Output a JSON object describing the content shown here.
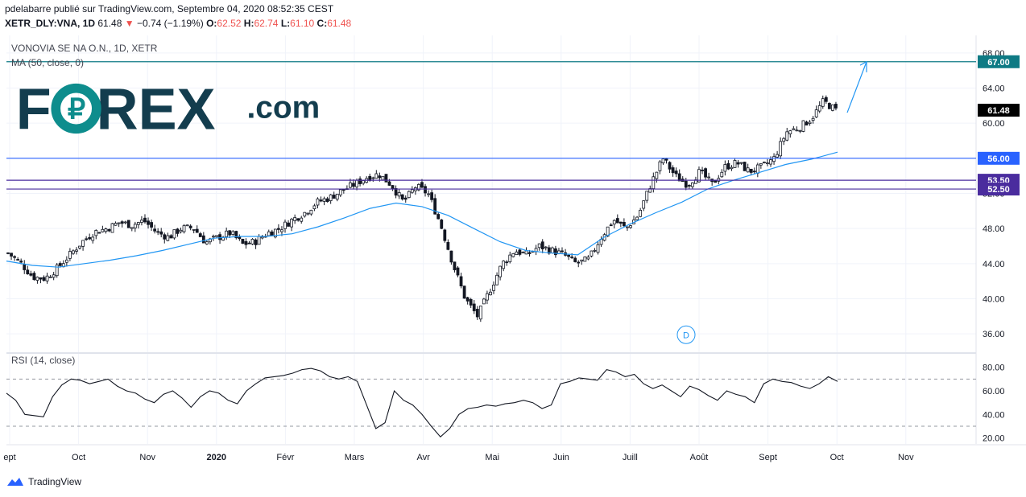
{
  "header": {
    "line1": "pdelabarre publié sur TradingView.com, Septembre 04, 2020 08:52:35 CEST",
    "symbol": "XETR_DLY:VNA, 1D",
    "last": "61.48",
    "change_arrow": "▼",
    "change": "−0.74 (−1.19%)",
    "o_label": "O:",
    "o_value": "62.52",
    "h_label": "H:",
    "h_value": "62.74",
    "l_label": "L:",
    "l_value": "61.10",
    "c_label": "C:",
    "c_value": "61.48"
  },
  "studies": {
    "title": "VONOVIA SE NA O.N., 1D, XETR",
    "ma": "MA (50, close, 0)",
    "rsi": "RSI (14, close)"
  },
  "logo": {
    "word": "FOREX",
    "suffix": ".com",
    "accent_color": "#0e8d8d",
    "text_color": "#133d4e"
  },
  "footer": {
    "brand": "TradingView"
  },
  "colors": {
    "ma": "#2196f3",
    "blue_level": "#2962ff",
    "teal_level": "#0e7a84",
    "purple_level": "#4a2c9e",
    "last_price_bg": "#000000"
  },
  "chart_data": [
    {
      "type": "candlestick",
      "ylim": [
        34,
        70
      ],
      "y_ticks": [
        36,
        40,
        44,
        48,
        52,
        56,
        60,
        64,
        68
      ],
      "y_tick_labels": [
        "36.00",
        "40.00",
        "44.00",
        "48.00",
        "52.00",
        "56.00",
        "60.00",
        "64.00",
        "68.00"
      ],
      "x_tick_labels": [
        "ept",
        "Oct",
        "Nov",
        "2020",
        "Févr",
        "Mars",
        "Avr",
        "Mai",
        "Juin",
        "Juill",
        "Août",
        "Sept",
        "Oct",
        "Nov"
      ],
      "price_path": [
        45.2,
        44.1,
        42.5,
        42.3,
        43.5,
        45.0,
        46.5,
        47.6,
        48.0,
        48.7,
        48.4,
        48.9,
        47.6,
        47.0,
        48.0,
        48.1,
        46.4,
        47.0,
        47.5,
        46.2,
        46.5,
        47.5,
        48.0,
        49.0,
        49.8,
        51.0,
        51.5,
        52.3,
        53.0,
        53.8,
        54.2,
        53.0,
        51.0,
        52.8,
        52.0,
        48.5,
        44.0,
        40.0,
        38.0,
        41.0,
        44.0,
        45.5,
        45.0,
        46.0,
        45.5,
        45.0,
        44.0,
        44.5,
        47.0,
        49.0,
        48.0,
        49.5,
        53.0,
        56.0,
        54.0,
        53.0,
        54.5,
        53.0,
        55.0,
        55.5,
        54.5,
        55.0,
        56.0,
        59.0,
        59.5,
        60.5,
        62.5,
        61.48
      ],
      "ma_path": [
        44.3,
        43.8,
        43.6,
        44.0,
        44.4,
        44.9,
        45.5,
        46.2,
        46.9,
        47.1,
        47.1,
        47.4,
        48.2,
        49.2,
        50.3,
        50.9,
        50.5,
        49.5,
        48.0,
        46.5,
        45.5,
        45.2,
        45.0,
        47.0,
        48.5,
        49.8,
        51.0,
        52.5,
        53.5,
        54.4,
        55.3,
        55.9,
        56.7
      ],
      "levels": [
        {
          "value": 67.0,
          "label": "67.00"
        },
        {
          "value": 56.0,
          "label": "56.00"
        },
        {
          "value": 53.5,
          "label": "53.50"
        },
        {
          "value": 52.5,
          "label": "52.50"
        }
      ],
      "last_price": {
        "value": 61.48,
        "label": "61.48"
      },
      "annotation": "D"
    },
    {
      "type": "line",
      "title": "RSI (14, close)",
      "ylim": [
        15,
        90
      ],
      "y_ticks": [
        20,
        40,
        60,
        80
      ],
      "y_tick_labels": [
        "20.00",
        "40.00",
        "60.00",
        "80.00"
      ],
      "bands": [
        30,
        70
      ],
      "values": [
        58,
        52,
        40,
        39,
        38,
        55,
        65,
        70,
        69,
        66,
        68,
        70,
        64,
        60,
        58,
        53,
        50,
        57,
        60,
        54,
        46,
        55,
        60,
        58,
        52,
        49,
        60,
        66,
        71,
        72,
        73,
        75,
        78,
        79,
        77,
        72,
        70,
        72,
        68,
        48,
        28,
        33,
        60,
        52,
        48,
        40,
        30,
        21,
        28,
        40,
        45,
        46,
        48,
        47,
        49,
        50,
        52,
        50,
        45,
        48,
        66,
        68,
        71,
        70,
        69,
        78,
        76,
        72,
        74,
        66,
        62,
        65,
        60,
        55,
        64,
        61,
        56,
        52,
        60,
        57,
        55,
        50,
        66,
        70,
        68,
        67,
        64,
        62,
        66,
        72,
        68
      ]
    }
  ]
}
